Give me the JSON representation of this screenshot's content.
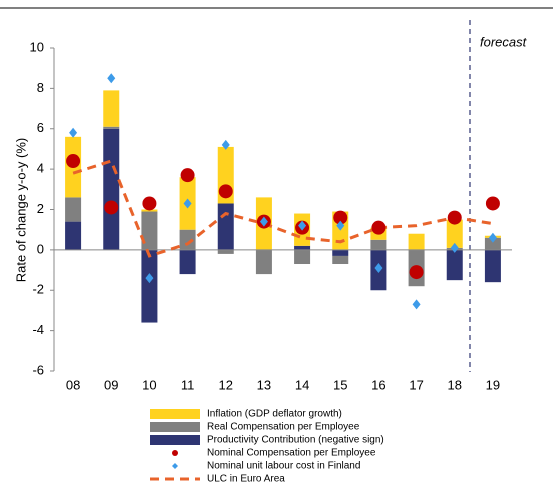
{
  "chart_data": {
    "type": "bar",
    "stacked": true,
    "y_label": "Rate of change y-o-y (%)",
    "annotation": "forecast",
    "categories": [
      "08",
      "09",
      "10",
      "11",
      "12",
      "13",
      "14",
      "15",
      "16",
      "17",
      "18",
      "19"
    ],
    "ylim": [
      -6,
      10
    ],
    "yticks": [
      -6,
      -4,
      -2,
      0,
      2,
      4,
      6,
      8,
      10
    ],
    "series": [
      {
        "name": "Productivity Contribution (negative sign)",
        "type": "bar",
        "color": "#2e3572",
        "values": [
          1.4,
          6.0,
          -3.6,
          -1.2,
          2.3,
          0,
          0.2,
          -0.3,
          -2.0,
          0,
          -1.5,
          -1.6
        ]
      },
      {
        "name": "Real Compensation per Employee",
        "type": "bar",
        "color": "#808080",
        "values": [
          1.2,
          0.1,
          1.9,
          1.0,
          -0.2,
          -1.2,
          -0.7,
          -0.4,
          0.5,
          -1.8,
          0.1,
          0.6
        ]
      },
      {
        "name": "Inflation (GDP deflator growth)",
        "type": "bar",
        "color": "#ffd21f",
        "values": [
          3.0,
          1.8,
          0.1,
          2.6,
          2.8,
          2.6,
          1.6,
          1.9,
          0.6,
          0.8,
          1.4,
          0.1
        ]
      },
      {
        "name": "Nominal Compensation per Employee",
        "type": "scatter",
        "marker": "circle",
        "color": "#c00000",
        "values": [
          4.4,
          2.1,
          2.3,
          3.7,
          2.9,
          1.4,
          1.1,
          1.6,
          1.1,
          -1.1,
          1.6,
          2.3
        ]
      },
      {
        "name": "Nominal unit labour cost in Finland",
        "type": "scatter",
        "marker": "diamond",
        "color": "#3d9be9",
        "values": [
          5.8,
          8.5,
          -1.4,
          2.3,
          5.2,
          1.4,
          1.2,
          1.2,
          -0.9,
          -2.7,
          0.1,
          0.6
        ]
      },
      {
        "name": "ULC in Euro Area",
        "type": "line",
        "color": "#e8632b",
        "values": [
          3.8,
          4.4,
          -0.3,
          0.3,
          1.8,
          1.3,
          0.6,
          0.4,
          1.1,
          1.2,
          1.6,
          1.3
        ]
      }
    ]
  }
}
